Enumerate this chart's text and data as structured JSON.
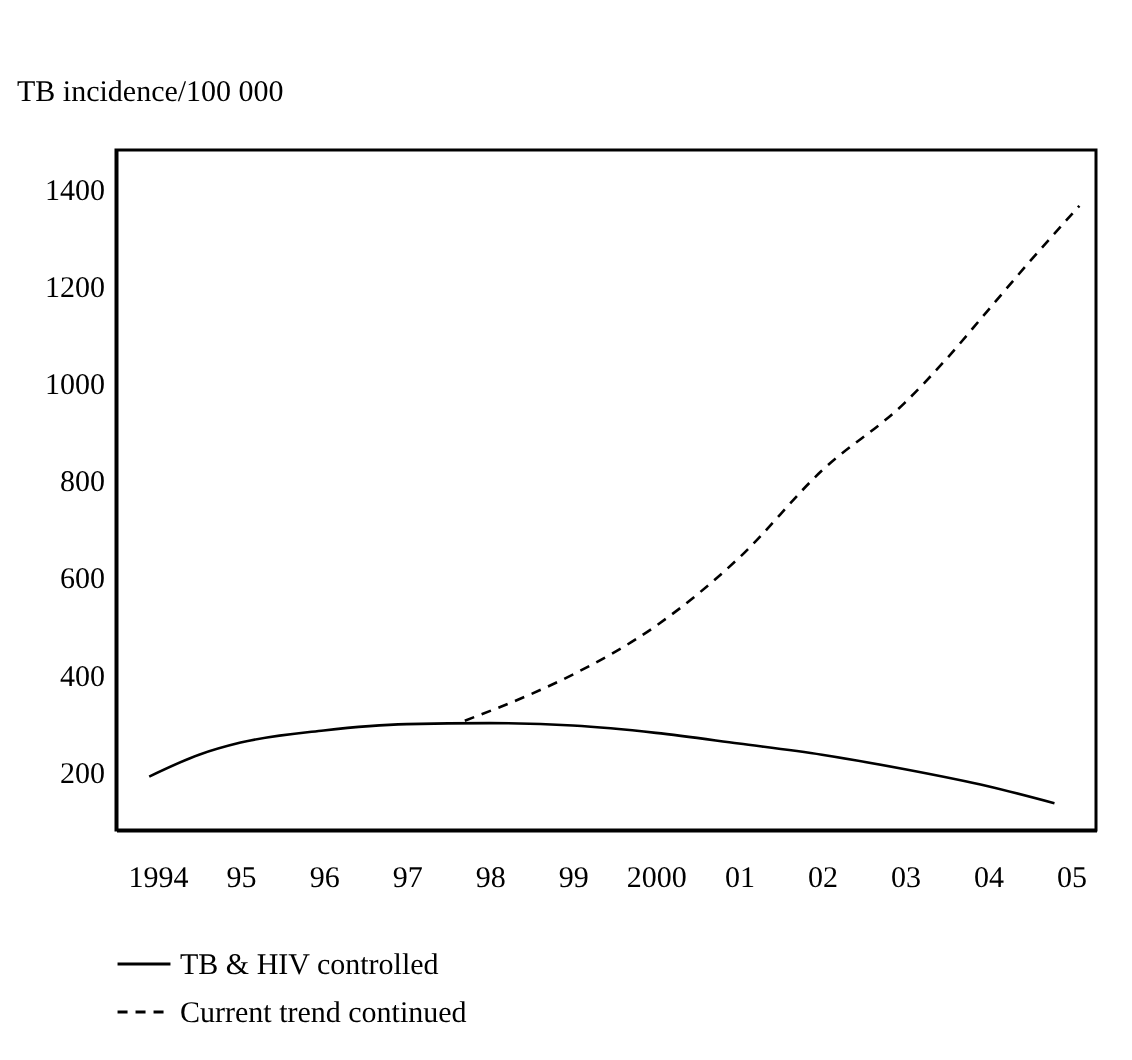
{
  "chart_data": {
    "type": "line",
    "ylabel": "TB incidence/100 000",
    "xlim": [
      1993.5,
      2005.3
    ],
    "ylim": [
      80,
      1480
    ],
    "xticks": [
      {
        "value": 1994,
        "label": "1994"
      },
      {
        "value": 1995,
        "label": "95"
      },
      {
        "value": 1996,
        "label": "96"
      },
      {
        "value": 1997,
        "label": "97"
      },
      {
        "value": 1998,
        "label": "98"
      },
      {
        "value": 1999,
        "label": "99"
      },
      {
        "value": 2000,
        "label": "2000"
      },
      {
        "value": 2001,
        "label": "01"
      },
      {
        "value": 2002,
        "label": "02"
      },
      {
        "value": 2003,
        "label": "03"
      },
      {
        "value": 2004,
        "label": "04"
      },
      {
        "value": 2005,
        "label": "05"
      }
    ],
    "yticks": [
      200,
      400,
      600,
      800,
      1000,
      1200,
      1400
    ],
    "grid": false,
    "legend": "bottom",
    "marker": "none",
    "series": [
      {
        "name": "TB & HIV controlled",
        "color": "#000000",
        "line_style": "solid",
        "x": [
          1993.9,
          1994.5,
          1995,
          1996,
          1997,
          1998,
          1999,
          2000,
          2001,
          2002,
          2003,
          2004,
          2004.8
        ],
        "values": [
          190,
          235,
          260,
          285,
          298,
          300,
          295,
          280,
          258,
          235,
          205,
          170,
          135
        ]
      },
      {
        "name": "Current trend continued",
        "color": "#000000",
        "line_style": "dashed",
        "x": [
          1997.7,
          1998.5,
          1999,
          2000,
          2001,
          2002,
          2003,
          2003.5,
          2004,
          2004.5,
          2005.1
        ],
        "values": [
          305,
          360,
          400,
          500,
          640,
          820,
          960,
          1050,
          1150,
          1250,
          1365
        ]
      }
    ]
  }
}
